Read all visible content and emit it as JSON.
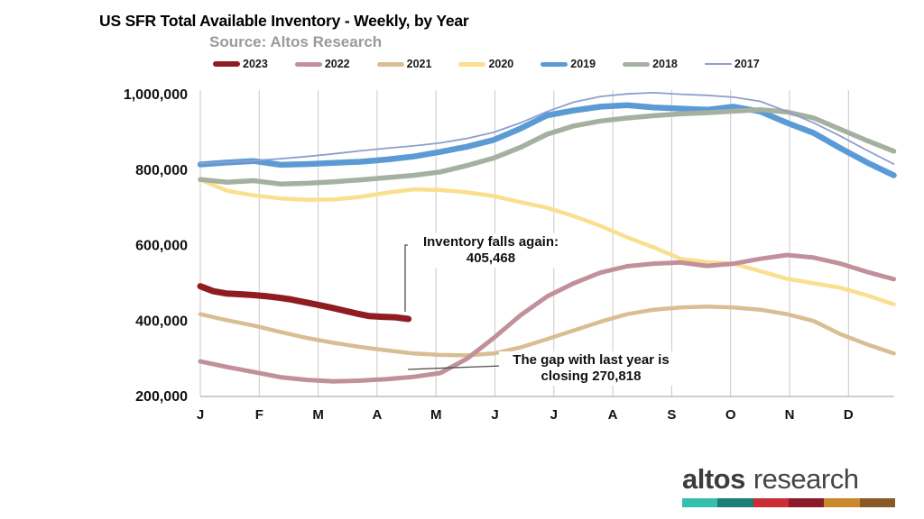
{
  "header": {
    "title": "US SFR Total Available Inventory - Weekly, by Year",
    "subtitle": "Source: Altos Research"
  },
  "chart_data": {
    "type": "line",
    "title": "US SFR Total Available Inventory - Weekly, by Year",
    "subtitle": "Source: Altos Research",
    "x_axis": {
      "labels": [
        "J",
        "F",
        "M",
        "A",
        "M",
        "J",
        "J",
        "A",
        "S",
        "O",
        "N",
        "D"
      ],
      "unit": "week of year",
      "weeks_per_year": 52,
      "grid": "vertical-only"
    },
    "y_axis": {
      "tick_labels": [
        "1,000,000",
        "800,000",
        "600,000",
        "400,000",
        "200,000"
      ],
      "tick_values": [
        1000000,
        800000,
        600000,
        400000,
        200000
      ],
      "min": 200000,
      "max": 1000000,
      "grid": "none"
    },
    "legend_position": "top",
    "draw_order": [
      "2020",
      "2019",
      "2018",
      "2017",
      "2021",
      "2022",
      "2023"
    ],
    "series": [
      {
        "name": "2023",
        "color": "#8e1c20",
        "line_width": 7,
        "legend_swatch_height": 6,
        "week_start": 1,
        "week_end": 16.3,
        "values": [
          492000,
          479000,
          473000,
          471000,
          469000,
          466000,
          462000,
          457000,
          450000,
          443000,
          436000,
          428000,
          420000,
          413000,
          411000,
          410000,
          405468
        ]
      },
      {
        "name": "2022",
        "color": "#c2909b",
        "line_width": 5,
        "legend_swatch_height": 5,
        "week_start": 1,
        "week_end": 52,
        "values": [
          293000,
          278000,
          265000,
          251000,
          244000,
          240000,
          242000,
          246000,
          252000,
          262000,
          300000,
          355000,
          415000,
          465000,
          500000,
          528000,
          545000,
          552000,
          555000,
          546000,
          552000,
          565000,
          575000,
          568000,
          552000,
          530000,
          511000
        ]
      },
      {
        "name": "2021",
        "color": "#d9bd93",
        "line_width": 4.5,
        "legend_swatch_height": 5,
        "week_start": 1,
        "week_end": 52,
        "values": [
          418000,
          402000,
          388000,
          371000,
          355000,
          342000,
          331000,
          322000,
          314000,
          310000,
          309000,
          314000,
          330000,
          352000,
          375000,
          398000,
          418000,
          430000,
          436000,
          438000,
          436000,
          430000,
          418000,
          400000,
          365000,
          338000,
          314000
        ]
      },
      {
        "name": "2020",
        "color": "#fadf8f",
        "line_width": 4.5,
        "legend_swatch_height": 5,
        "week_start": 1,
        "week_end": 52,
        "values": [
          775000,
          745000,
          733000,
          725000,
          721000,
          722000,
          729000,
          740000,
          749000,
          747000,
          741000,
          731000,
          715000,
          700000,
          678000,
          652000,
          622000,
          595000,
          565000,
          556000,
          552000,
          532000,
          512000,
          500000,
          488000,
          468000,
          444000
        ]
      },
      {
        "name": "2019",
        "color": "#5b9bd5",
        "line_width": 6.5,
        "legend_swatch_height": 5,
        "week_start": 1,
        "week_end": 52,
        "values": [
          815000,
          820000,
          824000,
          814000,
          816000,
          819000,
          822000,
          828000,
          836000,
          848000,
          862000,
          880000,
          910000,
          945000,
          958000,
          968000,
          972000,
          966000,
          963000,
          960000,
          968000,
          955000,
          925000,
          898000,
          858000,
          820000,
          786000
        ]
      },
      {
        "name": "2018",
        "color": "#a4b1a0",
        "line_width": 5.5,
        "legend_swatch_height": 5,
        "week_start": 1,
        "week_end": 52,
        "values": [
          775000,
          768000,
          772000,
          763000,
          765000,
          769000,
          774000,
          780000,
          786000,
          795000,
          812000,
          832000,
          860000,
          895000,
          917000,
          930000,
          938000,
          944000,
          949000,
          952000,
          956000,
          960000,
          954000,
          938000,
          908000,
          878000,
          850000
        ]
      },
      {
        "name": "2017",
        "color": "#8f9fcc",
        "line_width": 1.8,
        "legend_swatch_height": 2,
        "week_start": 1,
        "week_end": 52,
        "values": [
          818000,
          821000,
          825000,
          830000,
          836000,
          843000,
          851000,
          858000,
          864000,
          872000,
          884000,
          900000,
          925000,
          955000,
          980000,
          995000,
          1002000,
          1005000,
          1001000,
          998000,
          993000,
          982000,
          955000,
          925000,
          890000,
          852000,
          816000
        ]
      }
    ],
    "annotations": [
      {
        "line1": "Inventory falls again:",
        "line2": "405,468",
        "value": 405468,
        "points_to_series": "2023"
      },
      {
        "line1": "The gap with last year is",
        "line2": "closing 270,818",
        "value": 270818,
        "points_to_series": "2022"
      }
    ]
  },
  "footer": {
    "logo_primary": "altos",
    "logo_secondary": "research",
    "bar_colors": [
      "#35bfae",
      "#1d7e78",
      "#cc2c35",
      "#8c1b2a",
      "#c98a2d",
      "#8a5a26"
    ]
  },
  "colors": {
    "gridline": "#c9c9c9",
    "axis_line": "#bdbdbd",
    "tick_label": "#111111",
    "subtitle": "#9a9a9a",
    "leader_line": "#4d4d4d"
  }
}
